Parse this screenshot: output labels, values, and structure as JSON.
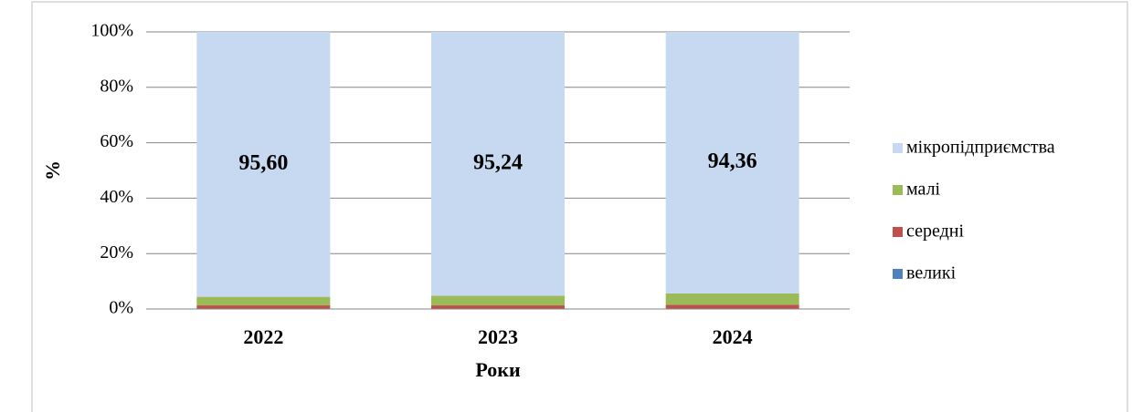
{
  "chart_data": {
    "type": "stacked_bar",
    "categories": [
      "2022",
      "2023",
      "2024"
    ],
    "series": [
      {
        "name": "великі",
        "color": "#4f81bd",
        "values": [
          0.1,
          0.1,
          0.1
        ]
      },
      {
        "name": "середні",
        "color": "#c0504d",
        "values": [
          1.2,
          1.2,
          1.4
        ]
      },
      {
        "name": "малі",
        "color": "#9bbb59",
        "values": [
          3.1,
          3.46,
          4.14
        ]
      },
      {
        "name": "мікропідприємства",
        "color": "#c6d9f1",
        "values": [
          95.6,
          95.24,
          94.36
        ],
        "value_labels": [
          "95,60",
          "95,24",
          "94,36"
        ]
      }
    ],
    "xlabel": "Роки",
    "ylabel": "%",
    "ylim": [
      0,
      100
    ],
    "yticks": [
      {
        "value": 0,
        "label": "0%"
      },
      {
        "value": 20,
        "label": "20%"
      },
      {
        "value": 40,
        "label": "40%"
      },
      {
        "value": 60,
        "label": "60%"
      },
      {
        "value": 80,
        "label": "80%"
      },
      {
        "value": 100,
        "label": "100%"
      }
    ],
    "grid": true,
    "legend": "right"
  }
}
